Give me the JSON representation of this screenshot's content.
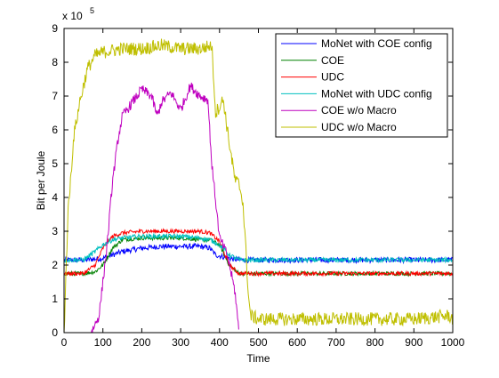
{
  "chart_data": {
    "type": "line",
    "xlabel": "Time",
    "ylabel": "Bit per Joule",
    "xlim": [
      0,
      1000
    ],
    "ylim": [
      0,
      9
    ],
    "y_multiplier_label": "x 10",
    "y_multiplier_exponent": "5",
    "xticks": [
      0,
      100,
      200,
      300,
      400,
      500,
      600,
      700,
      800,
      900,
      1000
    ],
    "yticks": [
      0,
      1,
      2,
      3,
      4,
      5,
      6,
      7,
      8,
      9
    ],
    "legend_position": "top-right",
    "grid": false,
    "series": [
      {
        "name": "MoNet with COE config",
        "color": "#0000ff",
        "x": [
          0,
          50,
          100,
          125,
          150,
          200,
          250,
          300,
          350,
          375,
          390,
          425,
          450,
          475,
          500,
          600,
          700,
          800,
          900,
          1000
        ],
        "y": [
          2.15,
          2.15,
          2.2,
          2.3,
          2.4,
          2.5,
          2.55,
          2.55,
          2.55,
          2.5,
          2.3,
          2.2,
          2.15,
          2.15,
          2.15,
          2.15,
          2.15,
          2.15,
          2.15,
          2.15
        ],
        "noise": 0.08
      },
      {
        "name": "COE",
        "color": "#008000",
        "x": [
          0,
          50,
          80,
          100,
          125,
          150,
          200,
          250,
          300,
          350,
          375,
          400,
          425,
          450,
          460,
          500,
          600,
          700,
          800,
          900,
          1000
        ],
        "y": [
          1.75,
          1.75,
          1.8,
          2.0,
          2.5,
          2.75,
          2.8,
          2.8,
          2.8,
          2.75,
          2.75,
          2.6,
          2.0,
          1.75,
          1.75,
          1.75,
          1.75,
          1.75,
          1.75,
          1.75,
          1.75
        ],
        "noise": 0.06
      },
      {
        "name": "UDC",
        "color": "#ff0000",
        "x": [
          0,
          50,
          80,
          100,
          125,
          150,
          200,
          250,
          300,
          350,
          375,
          400,
          425,
          450,
          460,
          500,
          600,
          700,
          800,
          900,
          1000
        ],
        "y": [
          1.75,
          1.75,
          2.0,
          2.5,
          2.85,
          2.95,
          3.0,
          3.0,
          3.0,
          3.0,
          2.95,
          2.7,
          2.0,
          1.75,
          1.75,
          1.75,
          1.75,
          1.75,
          1.75,
          1.75,
          1.75
        ],
        "noise": 0.06
      },
      {
        "name": "MoNet with UDC config",
        "color": "#00bfbf",
        "x": [
          0,
          50,
          80,
          100,
          125,
          150,
          200,
          250,
          300,
          350,
          375,
          400,
          425,
          450,
          475,
          500,
          600,
          700,
          800,
          900,
          1000
        ],
        "y": [
          2.15,
          2.15,
          2.4,
          2.6,
          2.75,
          2.8,
          2.85,
          2.85,
          2.85,
          2.8,
          2.75,
          2.6,
          2.3,
          2.15,
          2.15,
          2.15,
          2.15,
          2.15,
          2.15,
          2.15,
          2.15
        ],
        "noise": 0.07
      },
      {
        "name": "COE w/o Macro",
        "color": "#bf00bf",
        "x": [
          70,
          90,
          110,
          125,
          140,
          150,
          175,
          200,
          225,
          240,
          250,
          275,
          300,
          325,
          350,
          370,
          380,
          400,
          420,
          440,
          450
        ],
        "y": [
          0,
          0.5,
          2.5,
          4.5,
          5.8,
          6.4,
          6.8,
          7.2,
          7.0,
          6.4,
          6.8,
          7.1,
          6.6,
          7.3,
          7.0,
          6.9,
          5.0,
          2.8,
          2.3,
          1.2,
          0
        ],
        "noise": 0.15
      },
      {
        "name": "UDC w/o Macro",
        "color": "#bfbf00",
        "x": [
          0,
          10,
          25,
          40,
          60,
          80,
          100,
          150,
          200,
          250,
          300,
          350,
          380,
          390,
          410,
          420,
          440,
          450,
          460,
          470,
          475,
          480,
          500,
          600,
          700,
          800,
          900,
          990,
          1000
        ],
        "y": [
          0,
          3.5,
          5.8,
          6.8,
          7.8,
          8.2,
          8.3,
          8.4,
          8.4,
          8.5,
          8.4,
          8.4,
          8.5,
          6.5,
          6.9,
          6.0,
          4.5,
          4.4,
          3.9,
          2.0,
          1.0,
          0.5,
          0.4,
          0.4,
          0.4,
          0.4,
          0.4,
          0.5,
          0.4
        ],
        "noise": 0.2
      }
    ]
  }
}
